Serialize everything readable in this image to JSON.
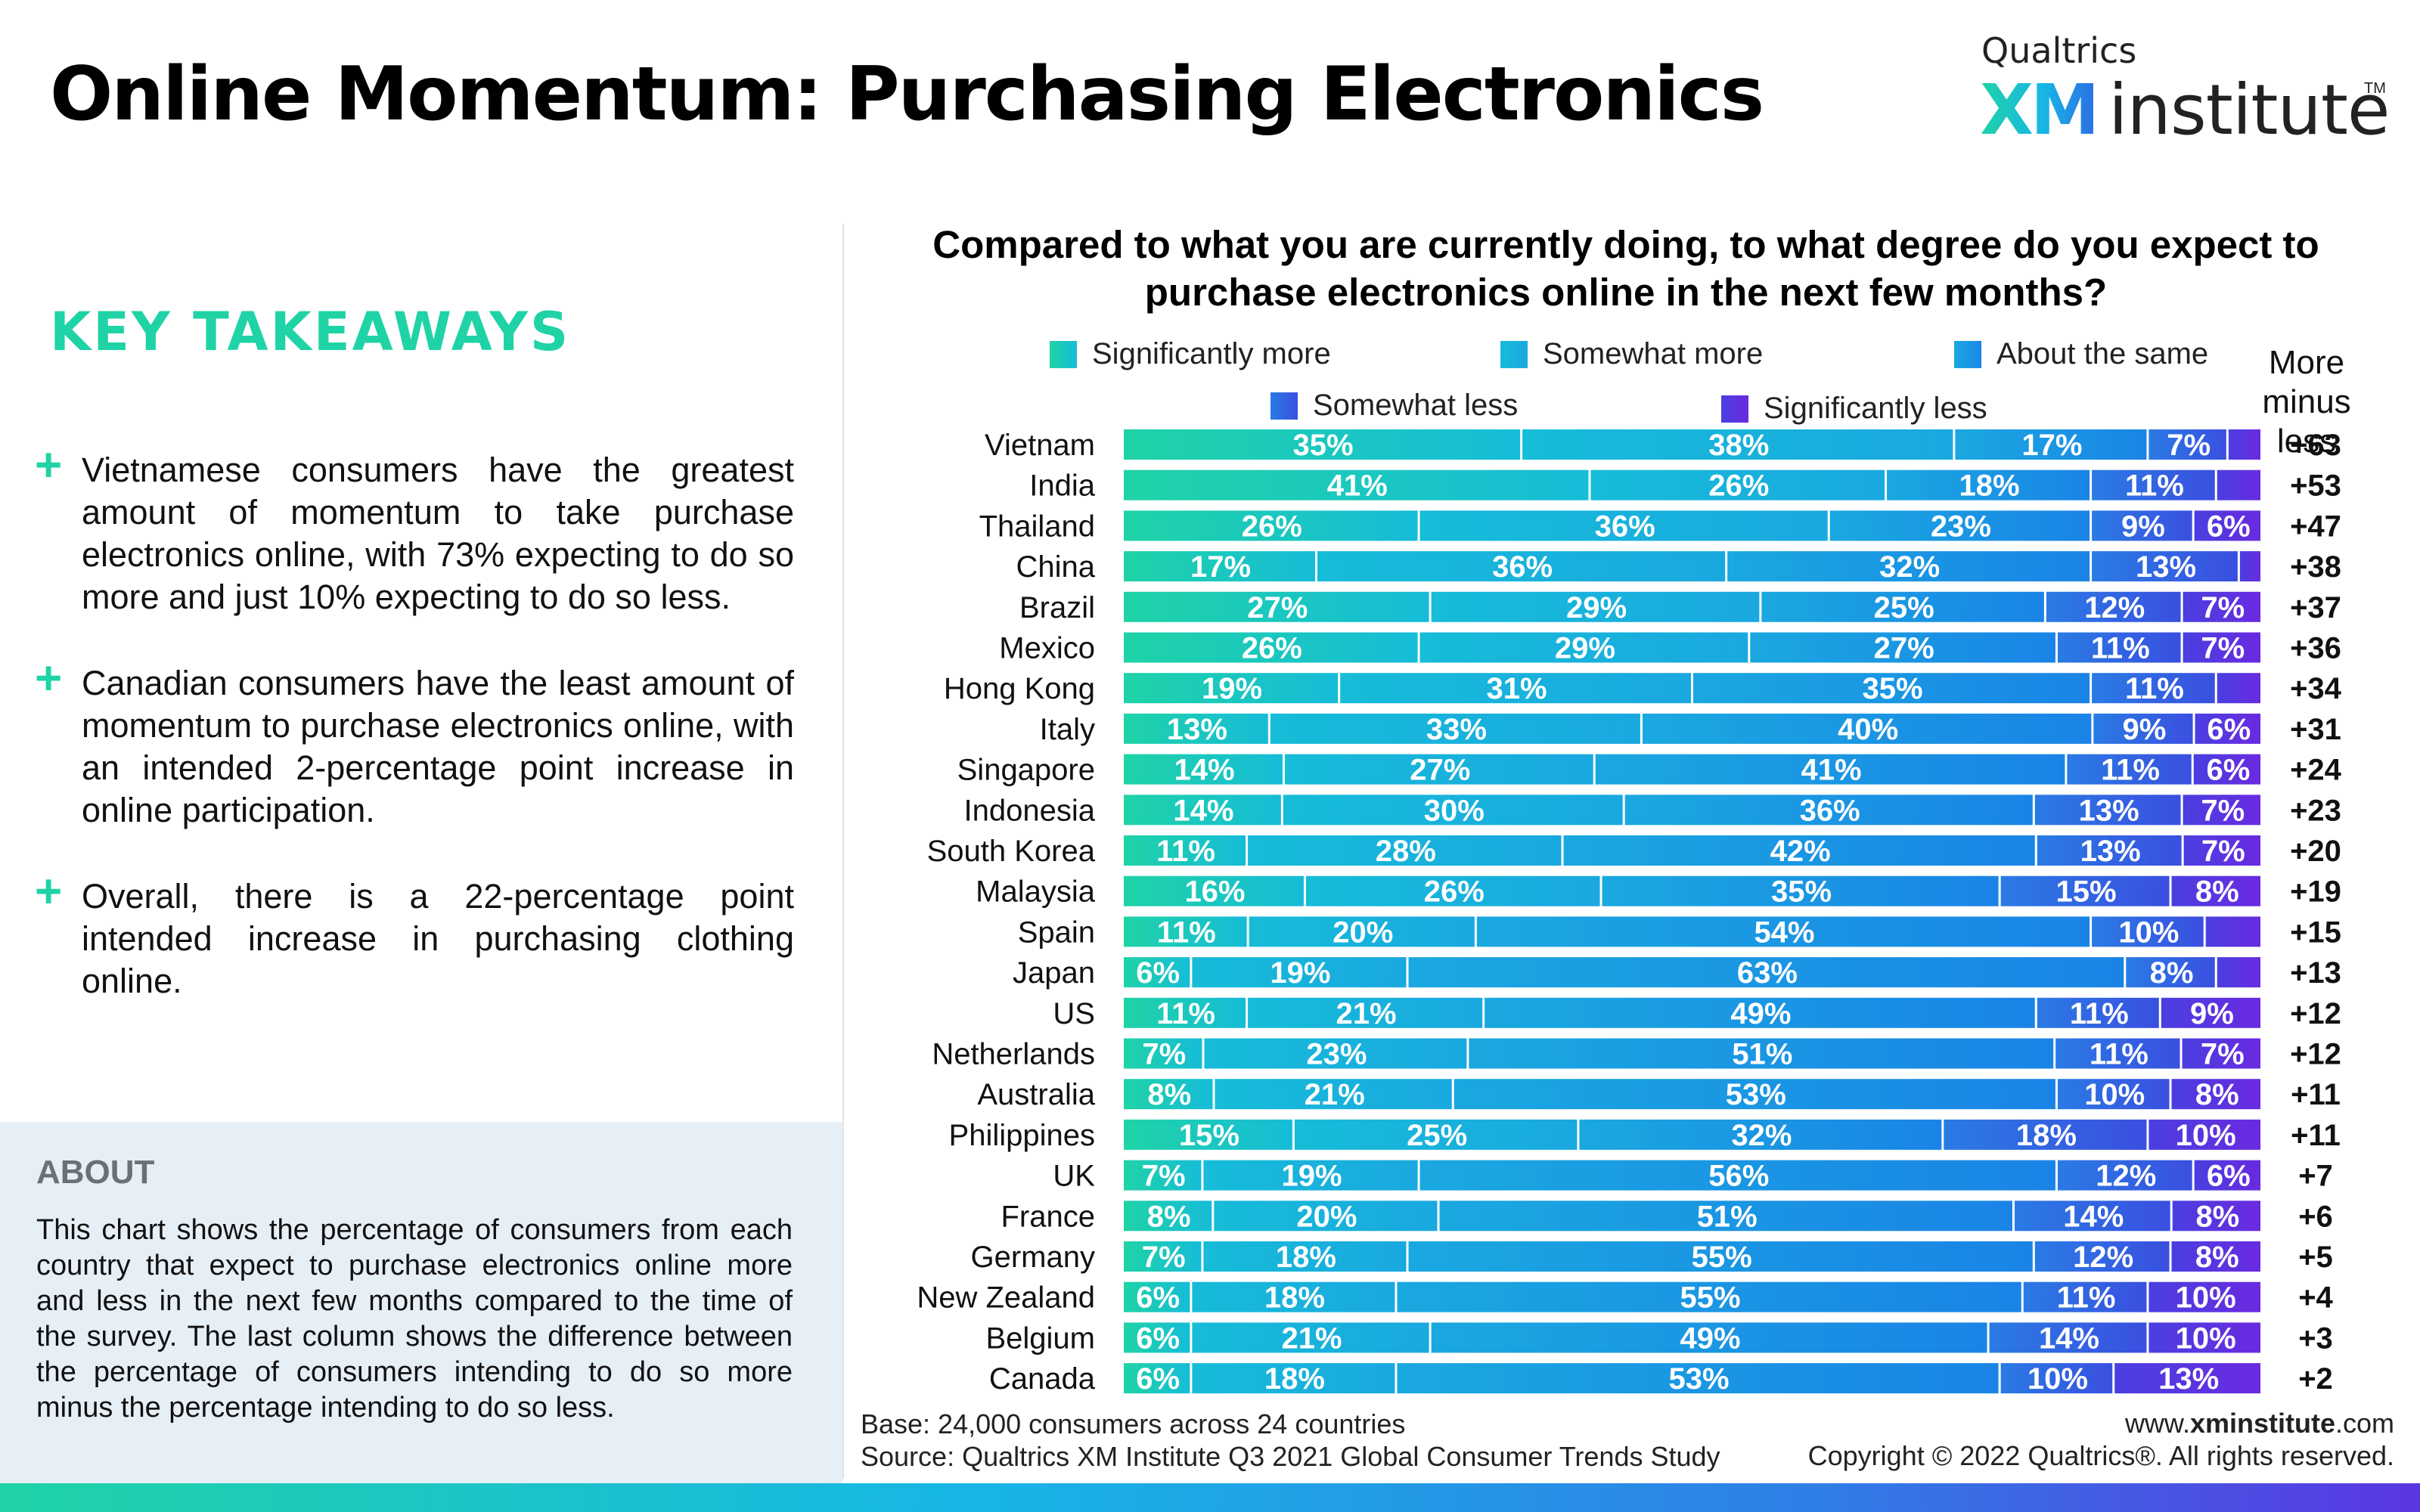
{
  "header": {
    "title": "Online Momentum: Purchasing Electronics",
    "logo_top": "Qualtrics",
    "logo_xm": "XM",
    "logo_institute": "institute",
    "logo_tm": "TM"
  },
  "takeaways": {
    "heading": "KEY TAKEAWAYS",
    "items": [
      {
        "text": "Vietnamese consumers have the greatest amount of momentum to take purchase electronics online, with 73% expecting to do so more and just 10% expecting to do so less."
      },
      {
        "text": "Canadian consumers have the least amount of momentum to purchase electronics online, with an intended 2-percentage point increase in online participation."
      },
      {
        "text": "Overall, there is a 22-percentage point intended increase in purchasing clothing online."
      }
    ]
  },
  "about": {
    "heading": "ABOUT",
    "text": "This chart shows the percentage of consumers from each country that expect to purchase electronics online more and less in the next few months compared to the time of the survey. The last column shows the difference between the percentage of consumers intending to do so more minus the percentage intending to do so less."
  },
  "footer": {
    "base": "Base: 24,000 consumers across 24 countries",
    "source": "Source: Qualtrics XM Institute Q3 2021 Global Consumer Trends Study",
    "site_prefix": "www.",
    "site_bold": "xminstitute",
    "site_suffix": ".com",
    "copyright": "Copyright © 2022 Qualtrics®. All rights reserved."
  },
  "chart_data": {
    "type": "bar",
    "orientation": "horizontal",
    "stacked": true,
    "title": "Compared to what you are currently doing, to what degree do you expect to purchase electronics online in the next few months?",
    "diff_header": "More minus less",
    "legend_placement": "top",
    "categories": [
      "Vietnam",
      "India",
      "Thailand",
      "China",
      "Brazil",
      "Mexico",
      "Hong Kong",
      "Italy",
      "Singapore",
      "Indonesia",
      "South Korea",
      "Malaysia",
      "Spain",
      "Japan",
      "US",
      "Netherlands",
      "Australia",
      "Philippines",
      "UK",
      "France",
      "Germany",
      "New Zealand",
      "Belgium",
      "Canada"
    ],
    "series": [
      {
        "name": "Significantly more",
        "color": "#1fd3a6",
        "values": [
          35,
          41,
          26,
          17,
          27,
          26,
          19,
          13,
          14,
          14,
          11,
          16,
          11,
          6,
          11,
          7,
          8,
          15,
          7,
          8,
          7,
          6,
          6,
          6
        ]
      },
      {
        "name": "Somewhat more",
        "color": "#16bcd8",
        "values": [
          38,
          26,
          36,
          36,
          29,
          29,
          31,
          33,
          27,
          30,
          28,
          26,
          20,
          19,
          21,
          23,
          21,
          25,
          19,
          20,
          18,
          18,
          21,
          18
        ]
      },
      {
        "name": "About the same",
        "color": "#1a94e6",
        "values": [
          17,
          18,
          23,
          32,
          25,
          27,
          35,
          40,
          41,
          36,
          42,
          35,
          54,
          63,
          49,
          51,
          53,
          32,
          56,
          51,
          55,
          55,
          49,
          53
        ]
      },
      {
        "name": "Somewhat less",
        "color": "#2f66e0",
        "values": [
          7,
          11,
          9,
          13,
          12,
          11,
          11,
          9,
          11,
          13,
          13,
          15,
          10,
          8,
          11,
          11,
          10,
          18,
          12,
          14,
          12,
          11,
          14,
          10
        ]
      },
      {
        "name": "Significantly less",
        "color": "#5a30e0",
        "values": [
          3,
          4,
          6,
          2,
          7,
          7,
          4,
          6,
          6,
          7,
          7,
          8,
          5,
          4,
          9,
          7,
          8,
          10,
          6,
          8,
          8,
          10,
          10,
          13
        ]
      }
    ],
    "label_threshold": 6,
    "more_minus_less": [
      "+63",
      "+53",
      "+47",
      "+38",
      "+37",
      "+36",
      "+34",
      "+31",
      "+24",
      "+23",
      "+20",
      "+19",
      "+15",
      "+13",
      "+12",
      "+12",
      "+11",
      "+11",
      "+7",
      "+6",
      "+5",
      "+4",
      "+3",
      "+2"
    ]
  }
}
